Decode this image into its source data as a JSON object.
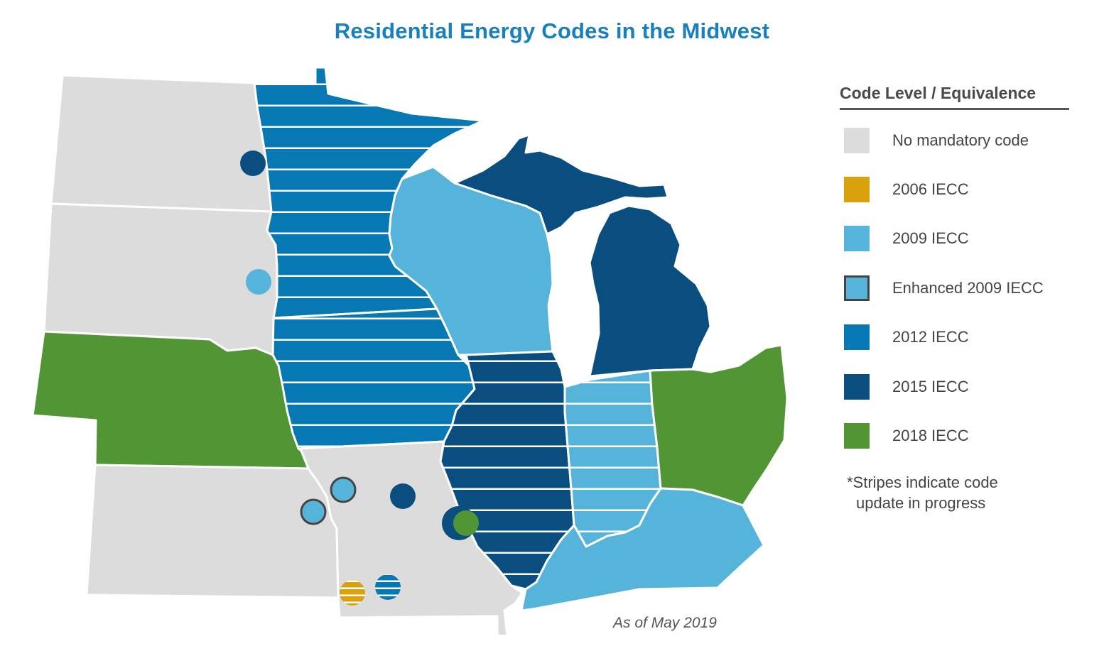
{
  "title": "Residential Energy Codes in the Midwest",
  "colors": {
    "none": "#dcdcdc",
    "iecc2006": "#d9a20d",
    "iecc2009": "#56b4da",
    "iecc2012": "#0878b5",
    "iecc2015": "#0a4e80",
    "iecc2018": "#529535",
    "enhanced_border": "#444444",
    "stroke": "#ffffff"
  },
  "legend": {
    "heading": "Code Level / Equivalence",
    "items": [
      {
        "label": "No mandatory code",
        "color": "#dcdcdc",
        "outlined": false
      },
      {
        "label": "2006 IECC",
        "color": "#d9a20d",
        "outlined": false
      },
      {
        "label": "2009 IECC",
        "color": "#56b4da",
        "outlined": false
      },
      {
        "label": "Enhanced 2009 IECC",
        "color": "#56b4da",
        "outlined": true
      },
      {
        "label": "2012 IECC",
        "color": "#0878b5",
        "outlined": false
      },
      {
        "label": "2015 IECC",
        "color": "#0a4e80",
        "outlined": false
      },
      {
        "label": "2018 IECC",
        "color": "#529535",
        "outlined": false
      }
    ],
    "note_line1": "*Stripes indicate code",
    "note_line2": "update in progress"
  },
  "as_of": "As of May 2019",
  "states": [
    {
      "name": "North Dakota",
      "code": "none",
      "striped": false
    },
    {
      "name": "South Dakota",
      "code": "none",
      "striped": false
    },
    {
      "name": "Nebraska",
      "code": "iecc2018",
      "striped": false
    },
    {
      "name": "Kansas",
      "code": "none",
      "striped": false
    },
    {
      "name": "Minnesota",
      "code": "iecc2012",
      "striped": true
    },
    {
      "name": "Iowa",
      "code": "iecc2012",
      "striped": true
    },
    {
      "name": "Missouri",
      "code": "none",
      "striped": false
    },
    {
      "name": "Wisconsin",
      "code": "iecc2009",
      "striped": false
    },
    {
      "name": "Illinois",
      "code": "iecc2015",
      "striped": true
    },
    {
      "name": "Michigan",
      "code": "iecc2015",
      "striped": false
    },
    {
      "name": "Indiana",
      "code": "iecc2009",
      "striped": true
    },
    {
      "name": "Ohio",
      "code": "iecc2018",
      "striped": false
    },
    {
      "name": "Kentucky",
      "code": "iecc2009",
      "striped": false
    }
  ],
  "local_markers": [
    {
      "code": "iecc2015",
      "outlined": false,
      "striped": false
    },
    {
      "code": "iecc2009",
      "outlined": false,
      "striped": false
    },
    {
      "code": "iecc2009",
      "outlined": true,
      "striped": false
    },
    {
      "code": "iecc2009",
      "outlined": true,
      "striped": false
    },
    {
      "code": "iecc2015",
      "outlined": false,
      "striped": false
    },
    {
      "code": "iecc2015",
      "outlined": false,
      "striped": false
    },
    {
      "code": "iecc2018",
      "outlined": false,
      "striped": false
    },
    {
      "code": "iecc2006",
      "outlined": false,
      "striped": true
    },
    {
      "code": "iecc2012",
      "outlined": false,
      "striped": true
    }
  ]
}
